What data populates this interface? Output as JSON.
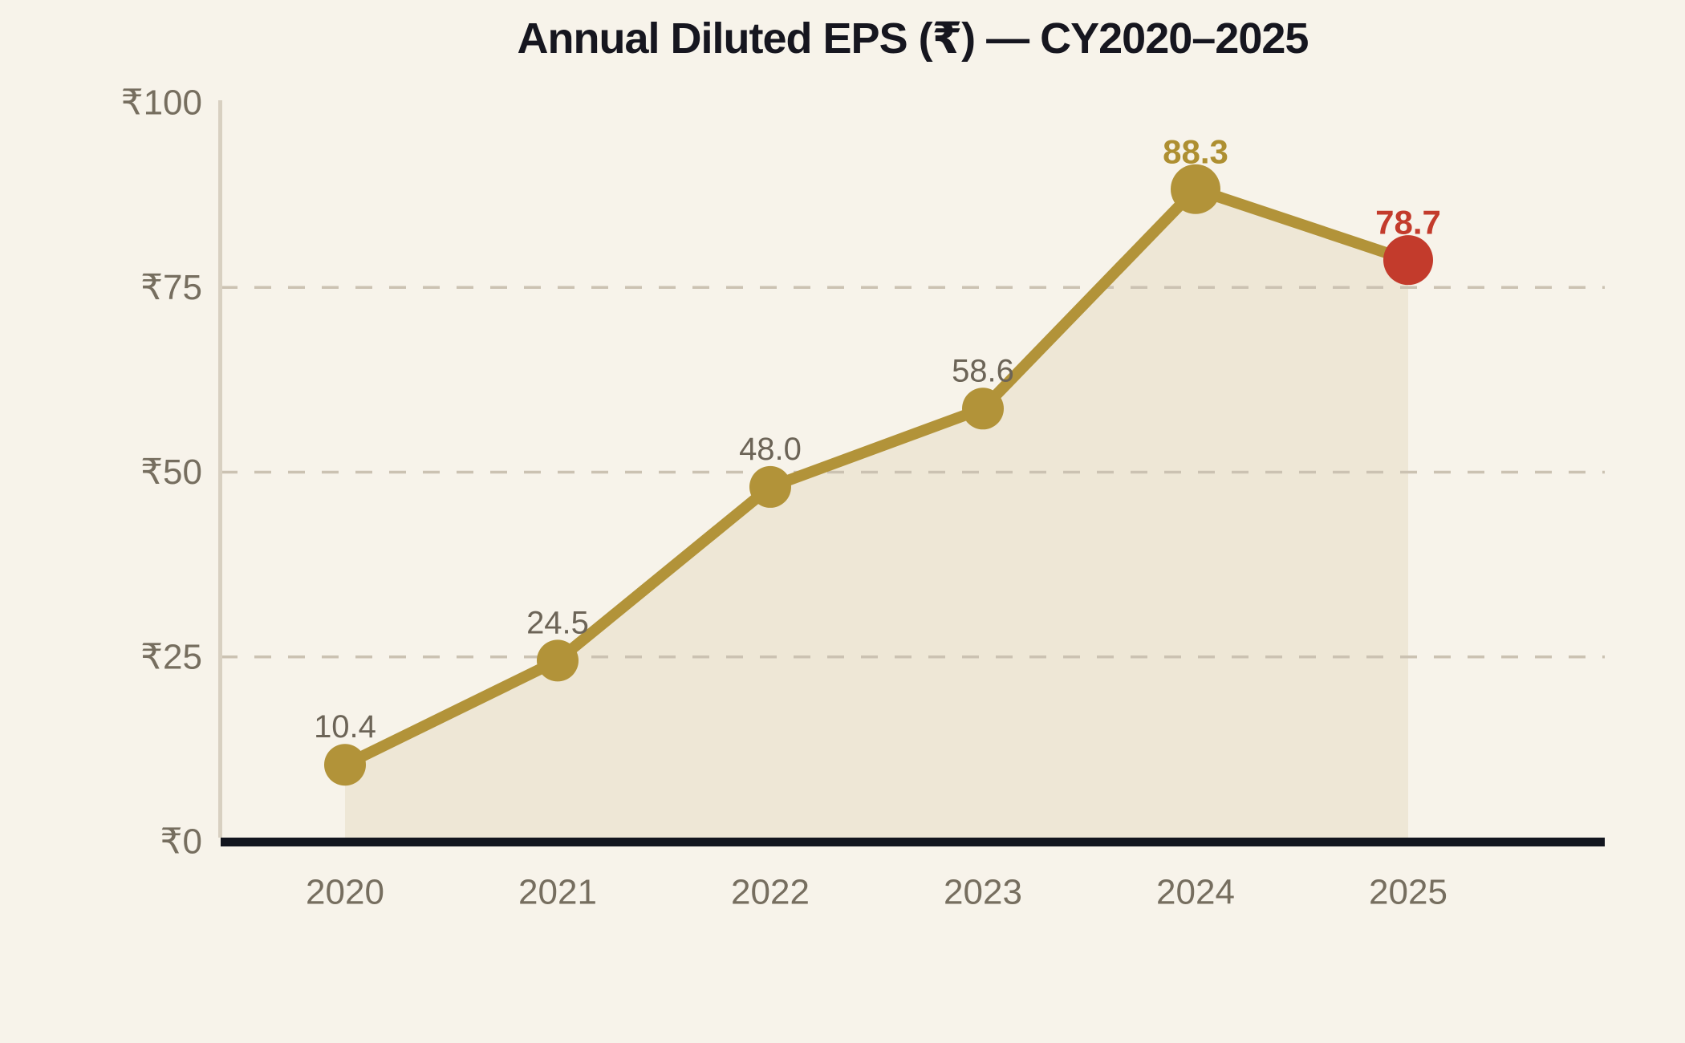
{
  "chart_data": {
    "type": "line",
    "title": "Annual Diluted EPS (₹) — CY2020–2025",
    "xlabel": "",
    "ylabel": "",
    "currency_prefix": "₹",
    "categories": [
      "2020",
      "2021",
      "2022",
      "2023",
      "2024",
      "2025"
    ],
    "series": [
      {
        "name": "Annual Diluted EPS",
        "values": [
          10.4,
          24.5,
          48.0,
          58.6,
          88.3,
          78.7
        ]
      }
    ],
    "points": [
      {
        "category": "2020",
        "value": 10.4,
        "label": "10.4",
        "emphasis": "none"
      },
      {
        "category": "2021",
        "value": 24.5,
        "label": "24.5",
        "emphasis": "none"
      },
      {
        "category": "2022",
        "value": 48.0,
        "label": "48.0",
        "emphasis": "none"
      },
      {
        "category": "2023",
        "value": 58.6,
        "label": "58.6",
        "emphasis": "none"
      },
      {
        "category": "2024",
        "value": 88.3,
        "label": "88.3",
        "emphasis": "peak"
      },
      {
        "category": "2025",
        "value": 78.7,
        "label": "78.7",
        "emphasis": "latest"
      }
    ],
    "ylim": [
      0,
      100
    ],
    "yticks": [
      {
        "value": 100,
        "label": "₹100"
      },
      {
        "value": 75,
        "label": "₹75"
      },
      {
        "value": 50,
        "label": "₹50"
      },
      {
        "value": 25,
        "label": "₹25"
      },
      {
        "value": 0,
        "label": "₹0"
      }
    ],
    "gridline_values": [
      25,
      50,
      75
    ],
    "grid": "horizontal-dashed",
    "legend": "none",
    "area_fill_under_line": true,
    "colors": {
      "background": "#F7F3EA",
      "line_gold": "#B29339",
      "marker_gold": "#B29339",
      "marker_red": "#C33B2C",
      "peak_label_gold": "#AE8F31",
      "latest_label_red": "#C33B2C",
      "area_fill": "#EEE7D6",
      "gridline": "#CBC2B2",
      "y_axis_line": "#D8D0C1",
      "x_axis_line": "#12151E",
      "value_label_gray": "#6C6457",
      "tick_label": "#766E5F",
      "title": "#16161F"
    }
  }
}
